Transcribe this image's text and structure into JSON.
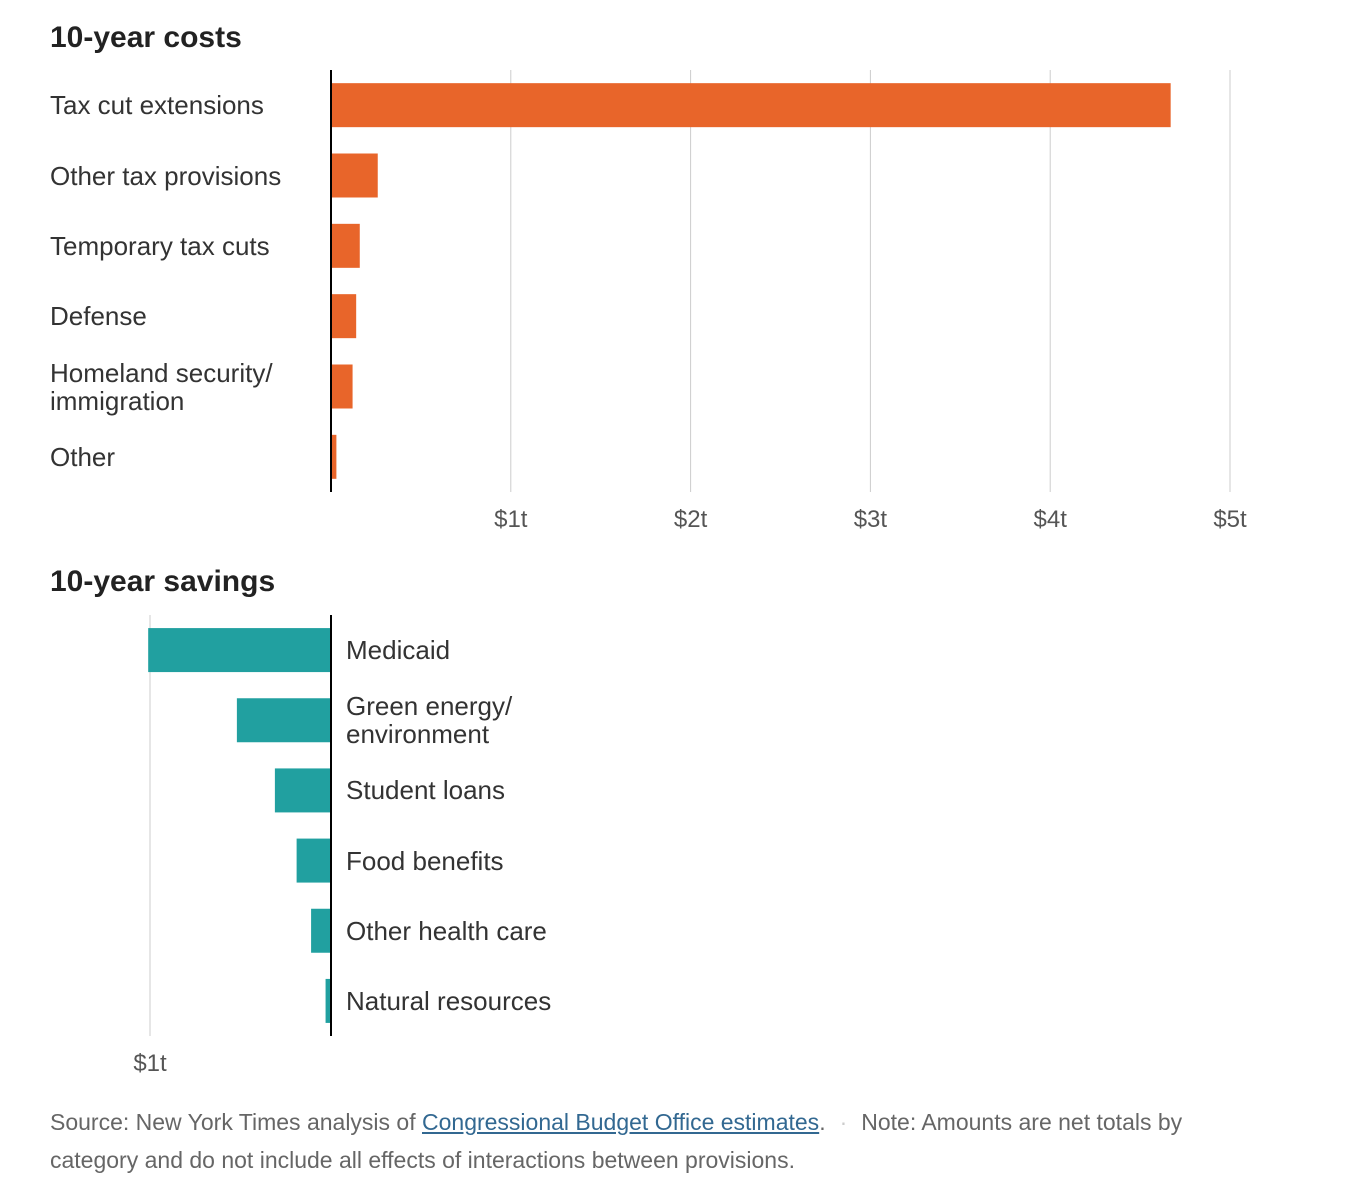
{
  "chart_data": [
    {
      "type": "bar",
      "orientation": "horizontal",
      "title": "10-year costs",
      "categories": [
        "Tax cut extensions",
        "Other tax provisions",
        "Temporary tax cuts",
        "Defense",
        "Homeland security/\nimmigration",
        "Other"
      ],
      "values": [
        4.67,
        0.26,
        0.16,
        0.14,
        0.12,
        0.03
      ],
      "color": "#e8652a",
      "xlim": [
        0,
        5
      ],
      "xticks": [
        {
          "value": 1,
          "label": "$1t"
        },
        {
          "value": 2,
          "label": "$2t"
        },
        {
          "value": 3,
          "label": "$3t"
        },
        {
          "value": 4,
          "label": "$4t"
        },
        {
          "value": 5,
          "label": "$5t"
        }
      ],
      "grid": true,
      "xreverse": false
    },
    {
      "type": "bar",
      "orientation": "horizontal",
      "title": "10-year savings",
      "categories": [
        "Medicaid",
        "Green energy/\nenvironment",
        "Student loans",
        "Food benefits",
        "Other health care",
        "Natural resources"
      ],
      "values": [
        1.01,
        0.52,
        0.31,
        0.19,
        0.11,
        0.03
      ],
      "color": "#21a0a0",
      "xlim": [
        0,
        1
      ],
      "xticks": [
        {
          "value": 1,
          "label": "$1t"
        }
      ],
      "grid": true,
      "xreverse": true
    }
  ],
  "footer": {
    "source": "Source: New York Times analysis of ",
    "source_link": "Congressional Budget Office estimates",
    "source_end": ".",
    "note": "Note: Amounts are net totals by category and do not include all effects of interactions between provisions."
  }
}
